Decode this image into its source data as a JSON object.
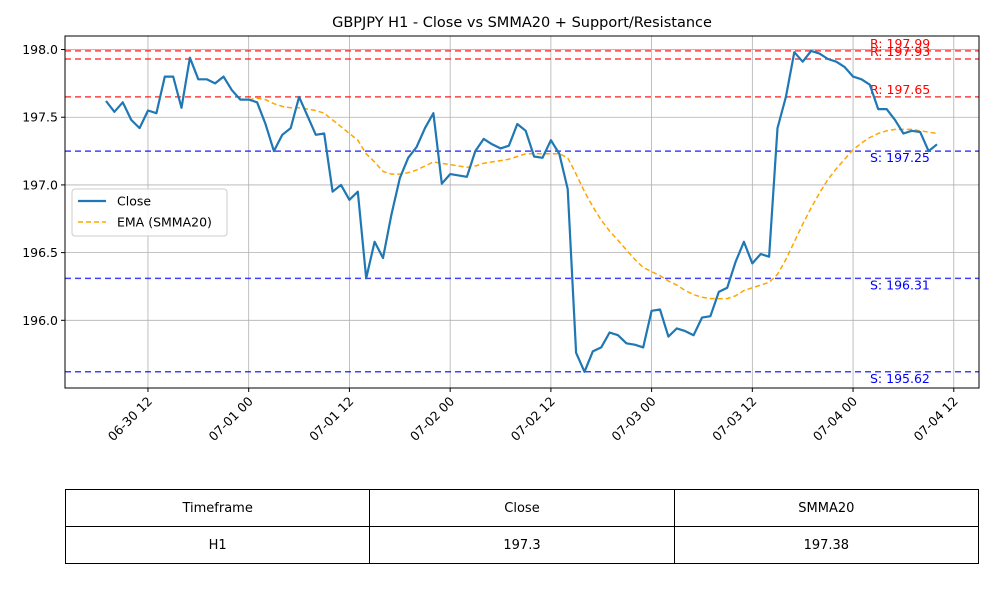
{
  "chart_data": {
    "type": "line",
    "title": "GBPJPY H1 - Close vs SMMA20 + Support/Resistance",
    "ylim": [
      195.5,
      198.1
    ],
    "y_ticks": [
      "196.0",
      "196.5",
      "197.0",
      "197.5",
      "198.0"
    ],
    "x_ticks": [
      "06-30 12",
      "07-01 00",
      "07-01 12",
      "07-02 00",
      "07-02 12",
      "07-03 00",
      "07-03 12",
      "07-04 00",
      "07-04 12"
    ],
    "grid": true,
    "legend_position": "center-left",
    "series": [
      {
        "name": "Close",
        "color": "#1f77b4",
        "style": "solid",
        "points": [
          [
            "06-30 07",
            197.62
          ],
          [
            "06-30 08",
            197.54
          ],
          [
            "06-30 09",
            197.61
          ],
          [
            "06-30 10",
            197.48
          ],
          [
            "06-30 11",
            197.42
          ],
          [
            "06-30 12",
            197.55
          ],
          [
            "06-30 13",
            197.53
          ],
          [
            "06-30 14",
            197.8
          ],
          [
            "06-30 15",
            197.8
          ],
          [
            "06-30 16",
            197.57
          ],
          [
            "06-30 17",
            197.94
          ],
          [
            "06-30 18",
            197.78
          ],
          [
            "06-30 19",
            197.78
          ],
          [
            "06-30 20",
            197.75
          ],
          [
            "06-30 21",
            197.8
          ],
          [
            "06-30 22",
            197.7
          ],
          [
            "06-30 23",
            197.63
          ],
          [
            "07-01 00",
            197.63
          ],
          [
            "07-01 01",
            197.61
          ],
          [
            "07-01 02",
            197.45
          ],
          [
            "07-01 03",
            197.25
          ],
          [
            "07-01 04",
            197.37
          ],
          [
            "07-01 05",
            197.42
          ],
          [
            "07-01 06",
            197.65
          ],
          [
            "07-01 07",
            197.51
          ],
          [
            "07-01 08",
            197.37
          ],
          [
            "07-01 09",
            197.38
          ],
          [
            "07-01 10",
            196.95
          ],
          [
            "07-01 11",
            197.0
          ],
          [
            "07-01 12",
            196.89
          ],
          [
            "07-01 13",
            196.95
          ],
          [
            "07-01 14",
            196.31
          ],
          [
            "07-01 15",
            196.58
          ],
          [
            "07-01 16",
            196.46
          ],
          [
            "07-01 17",
            196.78
          ],
          [
            "07-01 18",
            197.05
          ],
          [
            "07-01 19",
            197.2
          ],
          [
            "07-01 20",
            197.28
          ],
          [
            "07-01 21",
            197.42
          ],
          [
            "07-01 22",
            197.53
          ],
          [
            "07-01 23",
            197.01
          ],
          [
            "07-02 00",
            197.08
          ],
          [
            "07-02 01",
            197.07
          ],
          [
            "07-02 02",
            197.06
          ],
          [
            "07-02 03",
            197.25
          ],
          [
            "07-02 04",
            197.34
          ],
          [
            "07-02 05",
            197.3
          ],
          [
            "07-02 06",
            197.27
          ],
          [
            "07-02 07",
            197.29
          ],
          [
            "07-02 08",
            197.45
          ],
          [
            "07-02 09",
            197.4
          ],
          [
            "07-02 10",
            197.21
          ],
          [
            "07-02 11",
            197.2
          ],
          [
            "07-02 12",
            197.33
          ],
          [
            "07-02 13",
            197.23
          ],
          [
            "07-02 14",
            196.97
          ],
          [
            "07-02 15",
            195.76
          ],
          [
            "07-02 16",
            195.62
          ],
          [
            "07-02 17",
            195.77
          ],
          [
            "07-02 18",
            195.8
          ],
          [
            "07-02 19",
            195.91
          ],
          [
            "07-02 20",
            195.89
          ],
          [
            "07-02 21",
            195.83
          ],
          [
            "07-02 22",
            195.82
          ],
          [
            "07-02 23",
            195.8
          ],
          [
            "07-03 00",
            196.07
          ],
          [
            "07-03 01",
            196.08
          ],
          [
            "07-03 02",
            195.88
          ],
          [
            "07-03 03",
            195.94
          ],
          [
            "07-03 04",
            195.92
          ],
          [
            "07-03 05",
            195.89
          ],
          [
            "07-03 06",
            196.02
          ],
          [
            "07-03 07",
            196.03
          ],
          [
            "07-03 08",
            196.21
          ],
          [
            "07-03 09",
            196.24
          ],
          [
            "07-03 10",
            196.43
          ],
          [
            "07-03 11",
            196.58
          ],
          [
            "07-03 12",
            196.42
          ],
          [
            "07-03 13",
            196.49
          ],
          [
            "07-03 14",
            196.47
          ],
          [
            "07-03 15",
            197.42
          ],
          [
            "07-03 16",
            197.65
          ],
          [
            "07-03 17",
            197.98
          ],
          [
            "07-03 18",
            197.91
          ],
          [
            "07-03 19",
            197.99
          ],
          [
            "07-03 20",
            197.97
          ],
          [
            "07-03 21",
            197.93
          ],
          [
            "07-03 22",
            197.91
          ],
          [
            "07-03 23",
            197.87
          ],
          [
            "07-04 00",
            197.8
          ],
          [
            "07-04 01",
            197.78
          ],
          [
            "07-04 02",
            197.74
          ],
          [
            "07-04 03",
            197.56
          ],
          [
            "07-04 04",
            197.56
          ],
          [
            "07-04 05",
            197.48
          ],
          [
            "07-04 06",
            197.38
          ],
          [
            "07-04 07",
            197.4
          ],
          [
            "07-04 08",
            197.39
          ],
          [
            "07-04 09",
            197.25
          ],
          [
            "07-04 10",
            197.3
          ]
        ]
      },
      {
        "name": "EMA (SMMA20)",
        "color": "#ffa500",
        "style": "dashed",
        "points": [
          [
            "07-01 00",
            197.63
          ],
          [
            "07-01 01",
            197.64
          ],
          [
            "07-01 02",
            197.63
          ],
          [
            "07-01 03",
            197.6
          ],
          [
            "07-01 04",
            197.58
          ],
          [
            "07-01 05",
            197.57
          ],
          [
            "07-01 06",
            197.57
          ],
          [
            "07-01 07",
            197.56
          ],
          [
            "07-01 08",
            197.55
          ],
          [
            "07-01 09",
            197.53
          ],
          [
            "07-01 10",
            197.48
          ],
          [
            "07-01 11",
            197.43
          ],
          [
            "07-01 12",
            197.38
          ],
          [
            "07-01 13",
            197.33
          ],
          [
            "07-01 14",
            197.23
          ],
          [
            "07-01 15",
            197.17
          ],
          [
            "07-01 16",
            197.1
          ],
          [
            "07-01 17",
            197.08
          ],
          [
            "07-01 18",
            197.08
          ],
          [
            "07-01 19",
            197.09
          ],
          [
            "07-01 20",
            197.11
          ],
          [
            "07-01 21",
            197.14
          ],
          [
            "07-01 22",
            197.17
          ],
          [
            "07-01 23",
            197.16
          ],
          [
            "07-02 00",
            197.15
          ],
          [
            "07-02 01",
            197.14
          ],
          [
            "07-02 02",
            197.13
          ],
          [
            "07-02 03",
            197.14
          ],
          [
            "07-02 04",
            197.16
          ],
          [
            "07-02 05",
            197.17
          ],
          [
            "07-02 06",
            197.18
          ],
          [
            "07-02 07",
            197.19
          ],
          [
            "07-02 08",
            197.21
          ],
          [
            "07-02 09",
            197.23
          ],
          [
            "07-02 10",
            197.23
          ],
          [
            "07-02 11",
            197.23
          ],
          [
            "07-02 12",
            197.23
          ],
          [
            "07-02 13",
            197.23
          ],
          [
            "07-02 14",
            197.2
          ],
          [
            "07-02 15",
            197.08
          ],
          [
            "07-02 16",
            196.95
          ],
          [
            "07-02 17",
            196.84
          ],
          [
            "07-02 18",
            196.74
          ],
          [
            "07-02 19",
            196.66
          ],
          [
            "07-02 20",
            196.59
          ],
          [
            "07-02 21",
            196.52
          ],
          [
            "07-02 22",
            196.45
          ],
          [
            "07-02 23",
            196.39
          ],
          [
            "07-03 00",
            196.36
          ],
          [
            "07-03 01",
            196.33
          ],
          [
            "07-03 02",
            196.29
          ],
          [
            "07-03 03",
            196.26
          ],
          [
            "07-03 04",
            196.22
          ],
          [
            "07-03 05",
            196.19
          ],
          [
            "07-03 06",
            196.17
          ],
          [
            "07-03 07",
            196.16
          ],
          [
            "07-03 08",
            196.16
          ],
          [
            "07-03 09",
            196.16
          ],
          [
            "07-03 10",
            196.18
          ],
          [
            "07-03 11",
            196.22
          ],
          [
            "07-03 12",
            196.24
          ],
          [
            "07-03 13",
            196.26
          ],
          [
            "07-03 14",
            196.28
          ],
          [
            "07-03 15",
            196.34
          ],
          [
            "07-03 16",
            196.45
          ],
          [
            "07-03 17",
            196.58
          ],
          [
            "07-03 18",
            196.71
          ],
          [
            "07-03 19",
            196.83
          ],
          [
            "07-03 20",
            196.94
          ],
          [
            "07-03 21",
            197.04
          ],
          [
            "07-03 22",
            197.12
          ],
          [
            "07-03 23",
            197.19
          ],
          [
            "07-04 00",
            197.26
          ],
          [
            "07-04 01",
            197.31
          ],
          [
            "07-04 02",
            197.35
          ],
          [
            "07-04 03",
            197.38
          ],
          [
            "07-04 04",
            197.4
          ],
          [
            "07-04 05",
            197.41
          ],
          [
            "07-04 06",
            197.41
          ],
          [
            "07-04 07",
            197.41
          ],
          [
            "07-04 08",
            197.4
          ],
          [
            "07-04 09",
            197.39
          ],
          [
            "07-04 10",
            197.38
          ]
        ]
      }
    ],
    "levels": [
      {
        "kind": "resistance",
        "value": 197.99,
        "label": "R: 197.99",
        "color": "#ff0000"
      },
      {
        "kind": "resistance",
        "value": 197.93,
        "label": "R: 197.93",
        "color": "#ff0000"
      },
      {
        "kind": "resistance",
        "value": 197.65,
        "label": "R: 197.65",
        "color": "#ff0000"
      },
      {
        "kind": "support",
        "value": 197.25,
        "label": "S: 197.25",
        "color": "#0000ff"
      },
      {
        "kind": "support",
        "value": 196.31,
        "label": "S: 196.31",
        "color": "#0000ff"
      },
      {
        "kind": "support",
        "value": 195.62,
        "label": "S: 195.62",
        "color": "#0000ff"
      }
    ]
  },
  "table": {
    "headers": [
      "Timeframe",
      "Close",
      "SMMA20"
    ],
    "row": [
      "H1",
      "197.3",
      "197.38"
    ]
  }
}
